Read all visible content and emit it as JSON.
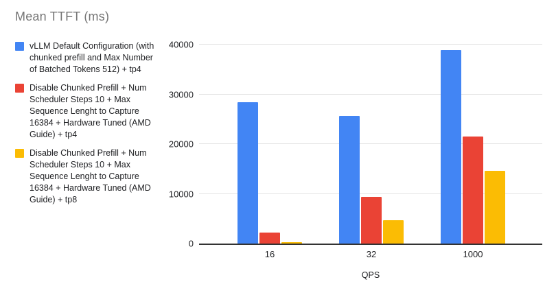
{
  "title": "Mean TTFT (ms)",
  "chart_data": {
    "type": "bar",
    "title": "Mean TTFT (ms)",
    "categories": [
      "16",
      "32",
      "1000"
    ],
    "series": [
      {
        "name": "vLLM Default Configuration (with chunked prefill and Max Number of Batched Tokens 512) + tp4",
        "color": "#4285F4",
        "values": [
          28400,
          25700,
          38900
        ]
      },
      {
        "name": "Disable Chunked Prefill + Num Scheduler Steps 10 + Max Sequence Lenght to Capture 16384 + Hardware Tuned (AMD Guide) + tp4",
        "color": "#EA4335",
        "values": [
          2200,
          9400,
          21500
        ]
      },
      {
        "name": "Disable Chunked Prefill + Num Scheduler Steps 10 + Max Sequence Lenght to Capture 16384 + Hardware Tuned (AMD Guide) + tp8",
        "color": "#FBBC04",
        "values": [
          250,
          4700,
          14600
        ]
      }
    ],
    "xlabel": "QPS",
    "ylabel": "",
    "ylim": [
      0,
      40000
    ],
    "yticks": [
      0,
      10000,
      20000,
      30000,
      40000
    ],
    "grid": true,
    "legend_position": "left"
  },
  "colors": {
    "title_text": "#757575",
    "axis_text": "#202124",
    "gridline": "#e3e3e3",
    "axis_line": "#333333",
    "background": "#ffffff"
  }
}
